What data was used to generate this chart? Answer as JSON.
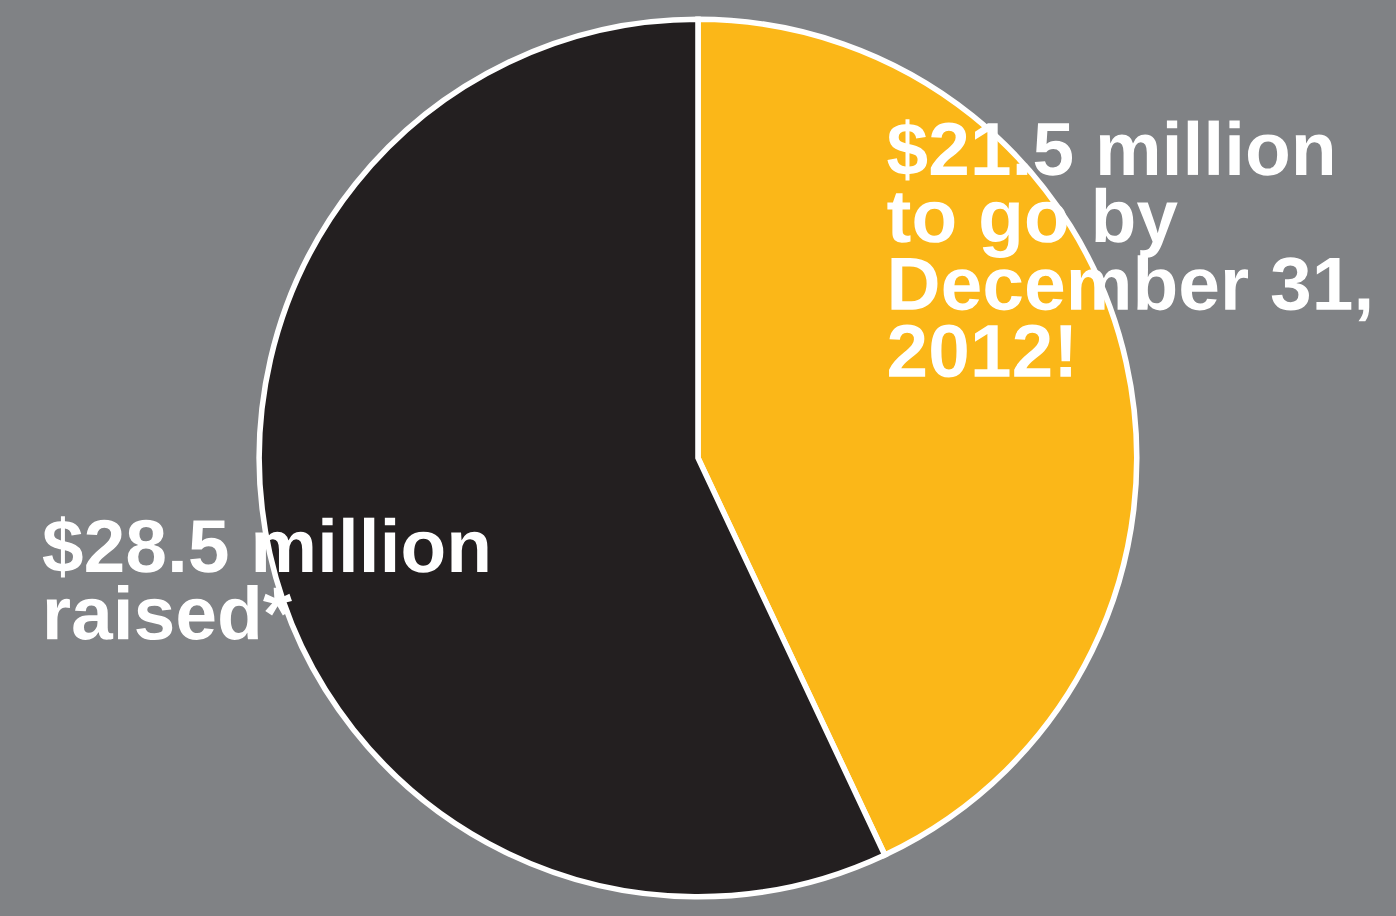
{
  "chart_data": {
    "type": "pie",
    "categories": [
      "$21.5 million\nto go by\nDecember 31,\n2012!",
      "$28.5 million\nraised*"
    ],
    "values": [
      21.5,
      28.5
    ],
    "colors": [
      "#fbb718",
      "#231f20"
    ]
  }
}
